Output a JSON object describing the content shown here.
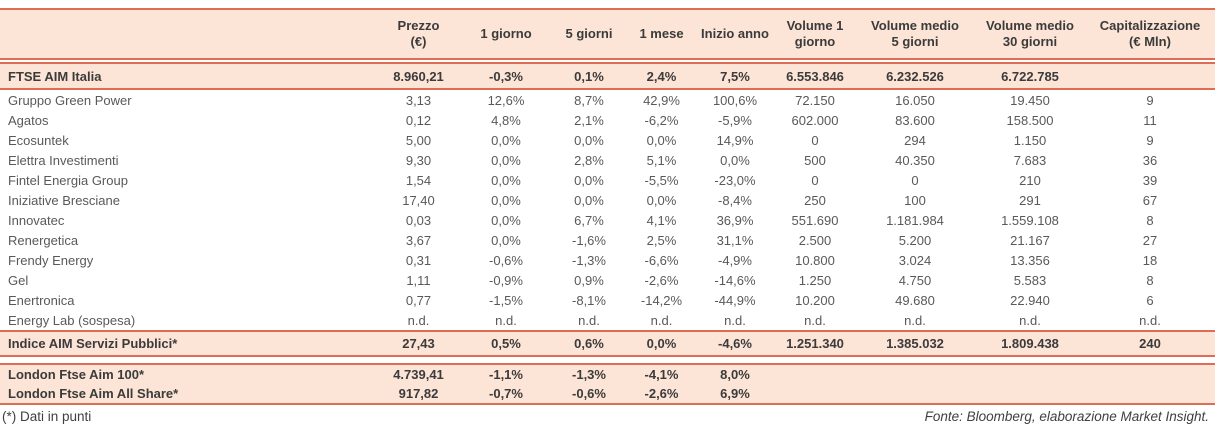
{
  "colors": {
    "band_bg": "#fce4d6",
    "border": "#df6c55",
    "text_dark": "#3b3b3b",
    "text_body": "#595959"
  },
  "table": {
    "header": {
      "name": "",
      "values": [
        "Prezzo\n(€)",
        "1 giorno",
        "5 giorni",
        "1 mese",
        "Inizio anno",
        "Volume 1\ngiorno",
        "Volume medio\n5 giorni",
        "Volume medio\n30 giorni",
        "Capitalizzazione\n(€ Mln)"
      ]
    },
    "index_row": {
      "name": "FTSE AIM Italia",
      "values": [
        "8.960,21",
        "-0,3%",
        "0,1%",
        "2,4%",
        "7,5%",
        "6.553.846",
        "6.232.526",
        "6.722.785",
        ""
      ]
    },
    "rows": [
      {
        "name": "Gruppo Green Power",
        "values": [
          "3,13",
          "12,6%",
          "8,7%",
          "42,9%",
          "100,6%",
          "72.150",
          "16.050",
          "19.450",
          "9"
        ]
      },
      {
        "name": "Agatos",
        "values": [
          "0,12",
          "4,8%",
          "2,1%",
          "-6,2%",
          "-5,9%",
          "602.000",
          "83.600",
          "158.500",
          "11"
        ]
      },
      {
        "name": "Ecosuntek",
        "values": [
          "5,00",
          "0,0%",
          "0,0%",
          "0,0%",
          "14,9%",
          "0",
          "294",
          "1.150",
          "9"
        ]
      },
      {
        "name": "Elettra Investimenti",
        "values": [
          "9,30",
          "0,0%",
          "2,8%",
          "5,1%",
          "0,0%",
          "500",
          "40.350",
          "7.683",
          "36"
        ]
      },
      {
        "name": "Fintel Energia Group",
        "values": [
          "1,54",
          "0,0%",
          "0,0%",
          "-5,5%",
          "-23,0%",
          "0",
          "0",
          "210",
          "39"
        ]
      },
      {
        "name": "Iniziative Bresciane",
        "values": [
          "17,40",
          "0,0%",
          "0,0%",
          "0,0%",
          "-8,4%",
          "250",
          "100",
          "291",
          "67"
        ]
      },
      {
        "name": "Innovatec",
        "values": [
          "0,03",
          "0,0%",
          "6,7%",
          "4,1%",
          "36,9%",
          "551.690",
          "1.181.984",
          "1.559.108",
          "8"
        ]
      },
      {
        "name": "Renergetica",
        "values": [
          "3,67",
          "0,0%",
          "-1,6%",
          "2,5%",
          "31,1%",
          "2.500",
          "5.200",
          "21.167",
          "27"
        ]
      },
      {
        "name": "Frendy Energy",
        "values": [
          "0,31",
          "-0,6%",
          "-1,3%",
          "-6,6%",
          "-4,9%",
          "10.800",
          "3.024",
          "13.356",
          "18"
        ]
      },
      {
        "name": "Gel",
        "values": [
          "1,11",
          "-0,9%",
          "0,9%",
          "-2,6%",
          "-14,6%",
          "1.250",
          "4.750",
          "5.583",
          "8"
        ]
      },
      {
        "name": "Enertronica",
        "values": [
          "0,77",
          "-1,5%",
          "-8,1%",
          "-14,2%",
          "-44,9%",
          "10.200",
          "49.680",
          "22.940",
          "6"
        ]
      },
      {
        "name": "Energy Lab (sospesa)",
        "values": [
          "n.d.",
          "n.d.",
          "n.d.",
          "n.d.",
          "n.d.",
          "n.d.",
          "n.d.",
          "n.d.",
          "n.d."
        ]
      }
    ],
    "servizi_row": {
      "name": "Indice AIM Servizi Pubblici*",
      "values": [
        "27,43",
        "0,5%",
        "0,6%",
        "0,0%",
        "-4,6%",
        "1.251.340",
        "1.385.032",
        "1.809.438",
        "240"
      ]
    },
    "london_rows": [
      {
        "name": "London Ftse Aim 100*",
        "values": [
          "4.739,41",
          "-1,1%",
          "-1,3%",
          "-4,1%",
          "8,0%",
          "",
          "",
          "",
          ""
        ]
      },
      {
        "name": "London Ftse Aim All Share*",
        "values": [
          "917,82",
          "-0,7%",
          "-0,6%",
          "-2,6%",
          "6,9%",
          "",
          "",
          "",
          ""
        ]
      }
    ]
  },
  "footer": {
    "note": "(*) Dati in punti",
    "source": "Fonte: Bloomberg, elaborazione Market Insight."
  }
}
